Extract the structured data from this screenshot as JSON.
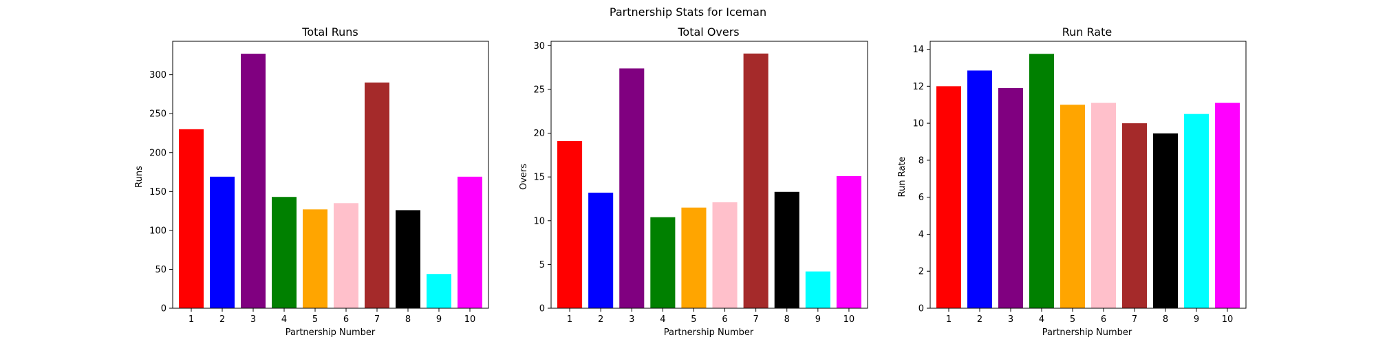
{
  "figure": {
    "title": "Partnership Stats for Iceman"
  },
  "chart_data": [
    {
      "type": "bar",
      "title": "Total Runs",
      "xlabel": "Partnership Number",
      "ylabel": "Runs",
      "categories": [
        "1",
        "2",
        "3",
        "4",
        "5",
        "6",
        "7",
        "8",
        "9",
        "10"
      ],
      "values": [
        230,
        169,
        327,
        143,
        127,
        135,
        290,
        126,
        44,
        169
      ],
      "colors": [
        "#ff0000",
        "#0000ff",
        "#800080",
        "#008000",
        "#ffa500",
        "#ffc0cb",
        "#a52a2a",
        "#000000",
        "#00ffff",
        "#ff00ff"
      ],
      "ylim": [
        0,
        343
      ],
      "yticks": [
        0,
        50,
        100,
        150,
        200,
        250,
        300
      ],
      "grid": false
    },
    {
      "type": "bar",
      "title": "Total Overs",
      "xlabel": "Partnership Number",
      "ylabel": "Overs",
      "categories": [
        "1",
        "2",
        "3",
        "4",
        "5",
        "6",
        "7",
        "8",
        "9",
        "10"
      ],
      "values": [
        19.1,
        13.2,
        27.4,
        10.4,
        11.5,
        12.1,
        29.1,
        13.3,
        4.2,
        15.1
      ],
      "colors": [
        "#ff0000",
        "#0000ff",
        "#800080",
        "#008000",
        "#ffa500",
        "#ffc0cb",
        "#a52a2a",
        "#000000",
        "#00ffff",
        "#ff00ff"
      ],
      "ylim": [
        0,
        30.5
      ],
      "yticks": [
        0,
        5,
        10,
        15,
        20,
        25,
        30
      ],
      "grid": false
    },
    {
      "type": "bar",
      "title": "Run Rate",
      "xlabel": "Partnership Number",
      "ylabel": "Run Rate",
      "categories": [
        "1",
        "2",
        "3",
        "4",
        "5",
        "6",
        "7",
        "8",
        "9",
        "10"
      ],
      "values": [
        12.0,
        12.85,
        11.9,
        13.75,
        11.0,
        11.1,
        10.0,
        9.45,
        10.5,
        11.1
      ],
      "colors": [
        "#ff0000",
        "#0000ff",
        "#800080",
        "#008000",
        "#ffa500",
        "#ffc0cb",
        "#a52a2a",
        "#000000",
        "#00ffff",
        "#ff00ff"
      ],
      "ylim": [
        0,
        14.43
      ],
      "yticks": [
        0,
        2,
        4,
        6,
        8,
        10,
        12,
        14
      ],
      "grid": false
    }
  ]
}
